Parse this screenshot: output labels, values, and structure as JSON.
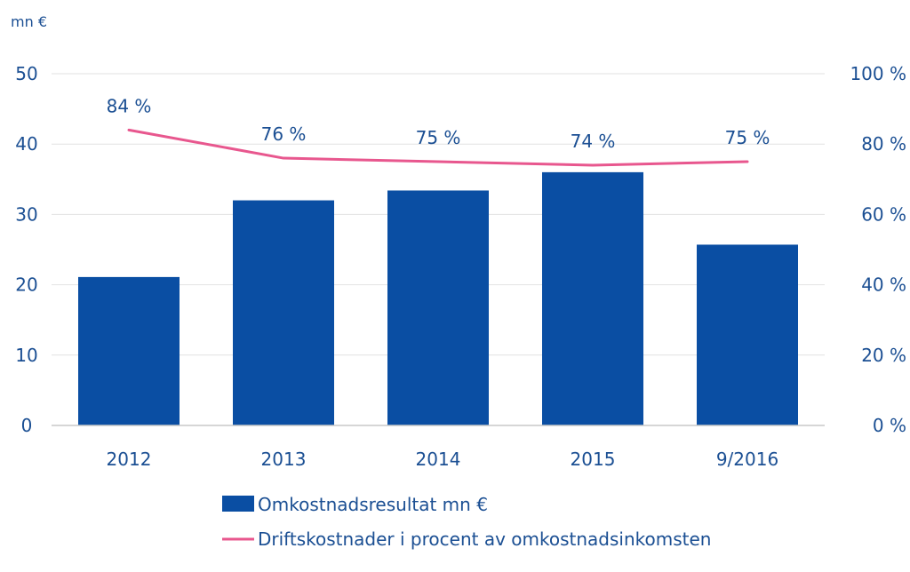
{
  "chart_data": {
    "type": "bar",
    "categories": [
      "2012",
      "2013",
      "2014",
      "2015",
      "9/2016"
    ],
    "series": [
      {
        "name": "Omkostnadsresultat mn €",
        "type": "bar",
        "axis": "left",
        "color": "#0a4ea3",
        "values": [
          21.1,
          32.0,
          33.4,
          36.0,
          25.7
        ]
      },
      {
        "name": "Driftskostnader i procent av omkostnadsinkomsten",
        "type": "line",
        "axis": "right",
        "color": "#e8578e",
        "values": [
          84,
          76,
          75,
          74,
          75
        ],
        "labels": [
          "84 %",
          "76 %",
          "75 %",
          "74 %",
          "75 %"
        ]
      }
    ],
    "left_axis": {
      "unit_label": "mn €",
      "ylim": [
        0,
        50
      ],
      "ticks": [
        "0",
        "10",
        "20",
        "30",
        "40",
        "50"
      ]
    },
    "right_axis": {
      "ylim": [
        0,
        100
      ],
      "ticks": [
        "0 %",
        "20 %",
        "40 %",
        "60 %",
        "80 %",
        "100 %"
      ]
    },
    "grid": true,
    "legend_position": "bottom",
    "text_color": "#1b4f93",
    "grid_color": "#e2e2e2"
  }
}
